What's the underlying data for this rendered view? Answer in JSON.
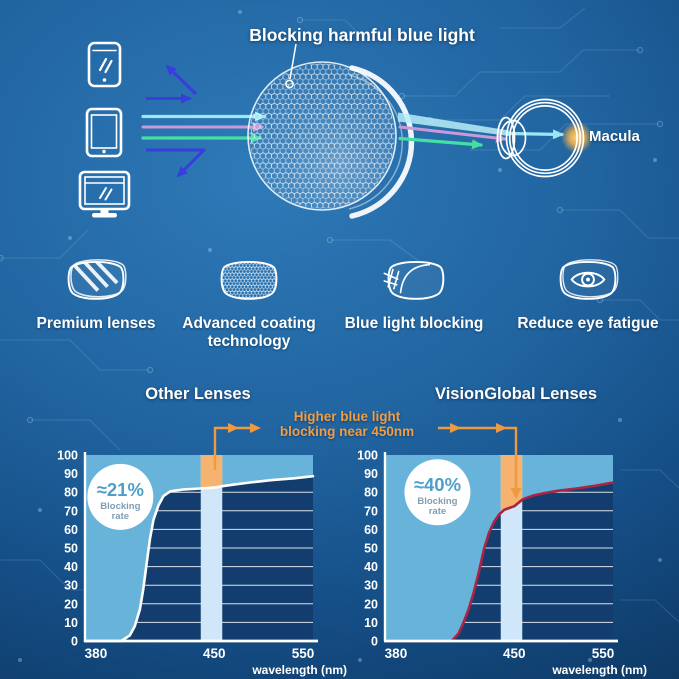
{
  "header": {
    "title": "Blocking harmful blue light"
  },
  "diagram": {
    "macula_label": "Macula",
    "devices": [
      "smartphone",
      "tablet",
      "monitor"
    ],
    "beam_colors": {
      "reflected_blue": "#3a3cdc",
      "cyan": "#9ae8f4",
      "violet": "#c79ad8",
      "green": "#45dfa4"
    },
    "macula_glow_color": "#ffb649"
  },
  "features": {
    "items": [
      {
        "label": "Premium lenses",
        "icon": "striped-lens-icon"
      },
      {
        "label": "Advanced coating technology",
        "icon": "honeycomb-lens-icon"
      },
      {
        "label": "Blue light blocking",
        "icon": "blue-light-shield-icon"
      },
      {
        "label": "Reduce eye fatigue",
        "icon": "eye-lens-icon"
      }
    ]
  },
  "comparison": {
    "annotation": {
      "line1": "Higher blue light",
      "line2": "blocking near 450nm",
      "color": "#f09d44",
      "arrow_color": "#ee9a40"
    }
  },
  "chart_data": [
    {
      "type": "area",
      "title": "Other Lenses",
      "xlabel": "wavelength (nm)",
      "xticks": [
        380,
        450,
        550
      ],
      "x_anchors_nm_frac": [
        [
          372,
          0
        ],
        [
          380,
          0.048
        ],
        [
          450,
          0.567
        ],
        [
          550,
          0.956
        ],
        [
          566,
          1
        ]
      ],
      "ylim": [
        0,
        100
      ],
      "ytick_step": 10,
      "grid": true,
      "series": [
        {
          "name": "blocking curve",
          "color": "#ffffff",
          "points_nm_pct": [
            [
              372,
              0
            ],
            [
              395,
              0
            ],
            [
              400,
              3
            ],
            [
              403,
              8
            ],
            [
              406,
              17
            ],
            [
              408,
              28
            ],
            [
              410,
              42
            ],
            [
              412,
              55
            ],
            [
              414,
              65
            ],
            [
              417,
              73
            ],
            [
              420,
              78
            ],
            [
              424,
              80.5
            ],
            [
              432,
              81.5
            ],
            [
              442,
              82
            ],
            [
              450,
              82.5
            ],
            [
              459,
              83.2
            ],
            [
              470,
              84
            ],
            [
              490,
              85.2
            ],
            [
              515,
              86.5
            ],
            [
              540,
              87.5
            ],
            [
              566,
              88.6
            ]
          ]
        }
      ],
      "highlight_band": {
        "nm": [
          442,
          459
        ],
        "fill_below": "#cfe7f8",
        "fill_above": "#f6b26f"
      },
      "badge": {
        "rate": "≈21%",
        "label": "Blocking rate",
        "fx": 0.155,
        "fy": 0.225
      },
      "colors": {
        "area_above_curve": "#67b3da",
        "plot_bg": "#123d6e",
        "tick_text": "#ffffff",
        "badge_rate": "#4d9fca",
        "badge_label": "#7f9db4"
      }
    },
    {
      "type": "area",
      "title": "VisionGlobal Lenses",
      "xlabel": "wavelength (nm)",
      "xticks": [
        380,
        450,
        550
      ],
      "x_anchors_nm_frac": [
        [
          372,
          0
        ],
        [
          380,
          0.048
        ],
        [
          450,
          0.567
        ],
        [
          550,
          0.956
        ],
        [
          566,
          1
        ]
      ],
      "ylim": [
        0,
        100
      ],
      "ytick_step": 10,
      "grid": true,
      "series": [
        {
          "name": "blocking curve",
          "color": "#aa2445",
          "points_nm_pct": [
            [
              372,
              0
            ],
            [
              413,
              0
            ],
            [
              417,
              4
            ],
            [
              420,
              10
            ],
            [
              423,
              17
            ],
            [
              426,
              26
            ],
            [
              429,
              37
            ],
            [
              432,
              49
            ],
            [
              435,
              58
            ],
            [
              438,
              64
            ],
            [
              441,
              68
            ],
            [
              444,
              70.5
            ],
            [
              447,
              71.5
            ],
            [
              450,
              72.5
            ],
            [
              454,
              74
            ],
            [
              459,
              76
            ],
            [
              464,
              77
            ],
            [
              472,
              78.3
            ],
            [
              484,
              79.5
            ],
            [
              500,
              80.8
            ],
            [
              520,
              82
            ],
            [
              542,
              83.5
            ],
            [
              566,
              85.2
            ]
          ]
        }
      ],
      "highlight_band": {
        "nm": [
          442,
          459
        ],
        "fill_below": "#cfe7f8",
        "fill_above": "#f6b26f"
      },
      "badge": {
        "rate": "≈40%",
        "label": "Blocking rate",
        "fx": 0.23,
        "fy": 0.2
      },
      "colors": {
        "area_above_curve": "#67b3da",
        "plot_bg": "#123d6e",
        "tick_text": "#ffffff",
        "badge_rate": "#4d9fca",
        "badge_label": "#7f9db4"
      }
    }
  ]
}
